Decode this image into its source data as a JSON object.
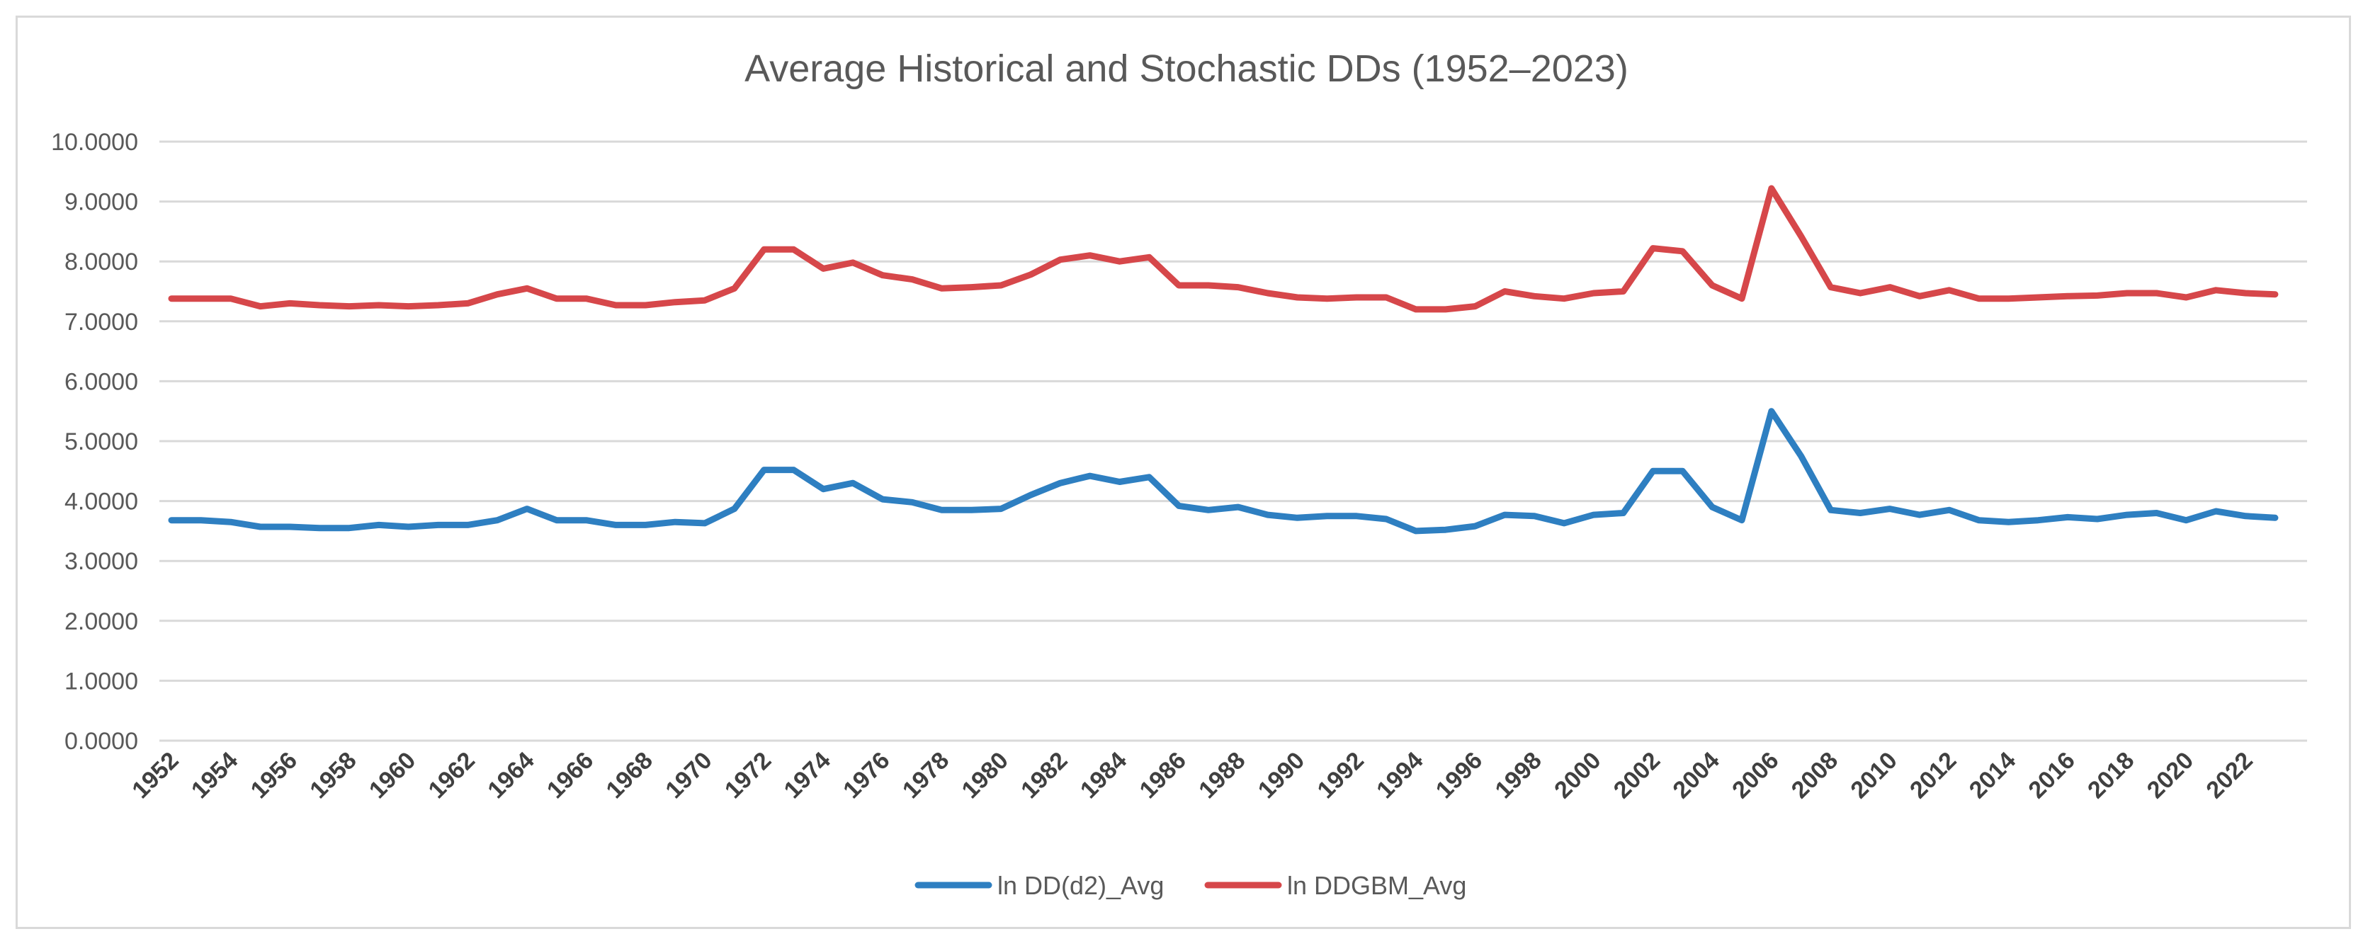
{
  "chart_data": {
    "type": "line",
    "title": "Average Historical and Stochastic DDs (1952–2023)",
    "xlabel": "",
    "ylabel": "",
    "ylim": [
      0,
      10
    ],
    "yticks": [
      "0.0000",
      "1.0000",
      "2.0000",
      "3.0000",
      "4.0000",
      "5.0000",
      "6.0000",
      "7.0000",
      "8.0000",
      "9.0000",
      "10.0000"
    ],
    "x": [
      1952,
      1953,
      1954,
      1955,
      1956,
      1957,
      1958,
      1959,
      1960,
      1961,
      1962,
      1963,
      1964,
      1965,
      1966,
      1967,
      1968,
      1969,
      1970,
      1971,
      1972,
      1973,
      1974,
      1975,
      1976,
      1977,
      1978,
      1979,
      1980,
      1981,
      1982,
      1983,
      1984,
      1985,
      1986,
      1987,
      1988,
      1989,
      1990,
      1991,
      1992,
      1993,
      1994,
      1995,
      1996,
      1997,
      1998,
      1999,
      2000,
      2001,
      2002,
      2003,
      2004,
      2005,
      2006,
      2007,
      2008,
      2009,
      2010,
      2011,
      2012,
      2013,
      2014,
      2015,
      2016,
      2017,
      2018,
      2019,
      2020,
      2021,
      2022,
      2023
    ],
    "xtick_labels": [
      "1952",
      "1954",
      "1956",
      "1958",
      "1960",
      "1962",
      "1964",
      "1966",
      "1968",
      "1970",
      "1972",
      "1974",
      "1976",
      "1978",
      "1980",
      "1982",
      "1984",
      "1986",
      "1988",
      "1990",
      "1992",
      "1994",
      "1996",
      "1998",
      "2000",
      "2002",
      "2004",
      "2006",
      "2008",
      "2010",
      "2012",
      "2014",
      "2016",
      "2018",
      "2020",
      "2022"
    ],
    "legend_position": "bottom",
    "grid": true,
    "series": [
      {
        "name": "ln DD(d2)_Avg",
        "color": "#2E7FC1",
        "values": [
          3.68,
          3.68,
          3.65,
          3.57,
          3.57,
          3.55,
          3.55,
          3.6,
          3.57,
          3.6,
          3.6,
          3.68,
          3.87,
          3.68,
          3.68,
          3.6,
          3.6,
          3.65,
          3.63,
          3.87,
          4.52,
          4.52,
          4.2,
          4.3,
          4.03,
          3.98,
          3.85,
          3.85,
          3.87,
          4.1,
          4.3,
          4.42,
          4.32,
          4.4,
          3.92,
          3.85,
          3.9,
          3.77,
          3.72,
          3.75,
          3.75,
          3.7,
          3.5,
          3.52,
          3.58,
          3.77,
          3.75,
          3.63,
          3.77,
          3.8,
          4.5,
          4.5,
          3.9,
          3.68,
          5.5,
          4.75,
          3.85,
          3.8,
          3.87,
          3.77,
          3.85,
          3.68,
          3.65,
          3.68,
          3.73,
          3.7,
          3.77,
          3.8,
          3.68,
          3.83,
          3.75,
          3.72
        ]
      },
      {
        "name": "ln DDGBM_Avg",
        "color": "#D6474A",
        "values": [
          7.38,
          7.38,
          7.38,
          7.25,
          7.3,
          7.27,
          7.25,
          7.27,
          7.25,
          7.27,
          7.3,
          7.45,
          7.55,
          7.38,
          7.38,
          7.27,
          7.27,
          7.32,
          7.35,
          7.55,
          8.2,
          8.2,
          7.88,
          7.98,
          7.77,
          7.7,
          7.55,
          7.57,
          7.6,
          7.78,
          8.03,
          8.1,
          8.0,
          8.07,
          7.6,
          7.6,
          7.57,
          7.47,
          7.4,
          7.38,
          7.4,
          7.4,
          7.2,
          7.2,
          7.25,
          7.5,
          7.42,
          7.38,
          7.47,
          7.5,
          8.22,
          8.17,
          7.6,
          7.38,
          9.22,
          8.42,
          7.57,
          7.47,
          7.57,
          7.42,
          7.52,
          7.38,
          7.38,
          7.4,
          7.42,
          7.43,
          7.47,
          7.47,
          7.4,
          7.52,
          7.47,
          7.45
        ]
      }
    ]
  }
}
